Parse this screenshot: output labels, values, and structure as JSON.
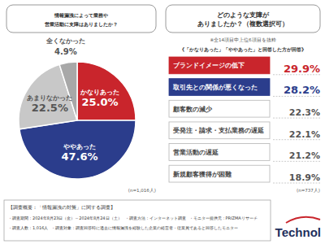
{
  "chart_data": [
    {
      "type": "pie",
      "title": "情報漏洩によって業務や\n営業活動に支障はありましたか？",
      "categories": [
        "かなりあった",
        "ややあった",
        "あまりなかった",
        "全くなかった"
      ],
      "values": [
        25.0,
        47.6,
        22.5,
        4.9
      ],
      "value_labels": [
        "25.0%",
        "47.6%",
        "22.5%",
        "4.9%"
      ],
      "colors": [
        "#c9252c",
        "#2b3d8c",
        "#c8c8c8",
        "#a8a8a8"
      ],
      "data_labels": true,
      "annotations": [
        "(n=1,016人)"
      ]
    },
    {
      "type": "list",
      "title": "どのような支障が\nありましたか？（複数選択可）",
      "subtitle": "※全14項目中上位6項目を抜粋",
      "categories": [
        "ブランドイメージの低下",
        "取引先との関係が悪くなった",
        "顧客数の減少",
        "受発注・請求・支払業務の遅延",
        "営業活動の遅延",
        "新規顧客獲得が困難"
      ],
      "values": [
        29.9,
        28.2,
        22.3,
        22.1,
        21.2,
        18.9
      ],
      "value_labels": [
        "29.9%",
        "28.2%",
        "22.3%",
        "22.1%",
        "21.2%",
        "18.9%"
      ],
      "color": "#6b6b6b",
      "colors": [
        "#c9252c",
        "#2b3d8c",
        "#6b6b6b",
        "#6b6b6b",
        "#6b6b6b",
        "#6b6b6b"
      ],
      "data_labels": true,
      "annotations": [
        "《「かなりあった」「ややあった」と回答した方が回答》",
        "(n=737人)"
      ]
    }
  ],
  "footer": {
    "title": "【調査概要：「情報漏洩の対策」に関する調査】",
    "lines": [
      [
        "・調査期間：2024年8月23日（金）～2024年8月24日（土）",
        "・調査方法：インターネット調査",
        "・モニター提供元：PRIZMAリサーチ"
      ],
      [
        "・調査人数：1,016人",
        "・調査対象：調査回答時に過去に情報漏洩を経験した企業の経営者・従業員であると回答したモニター"
      ]
    ]
  },
  "logo": "Technol"
}
